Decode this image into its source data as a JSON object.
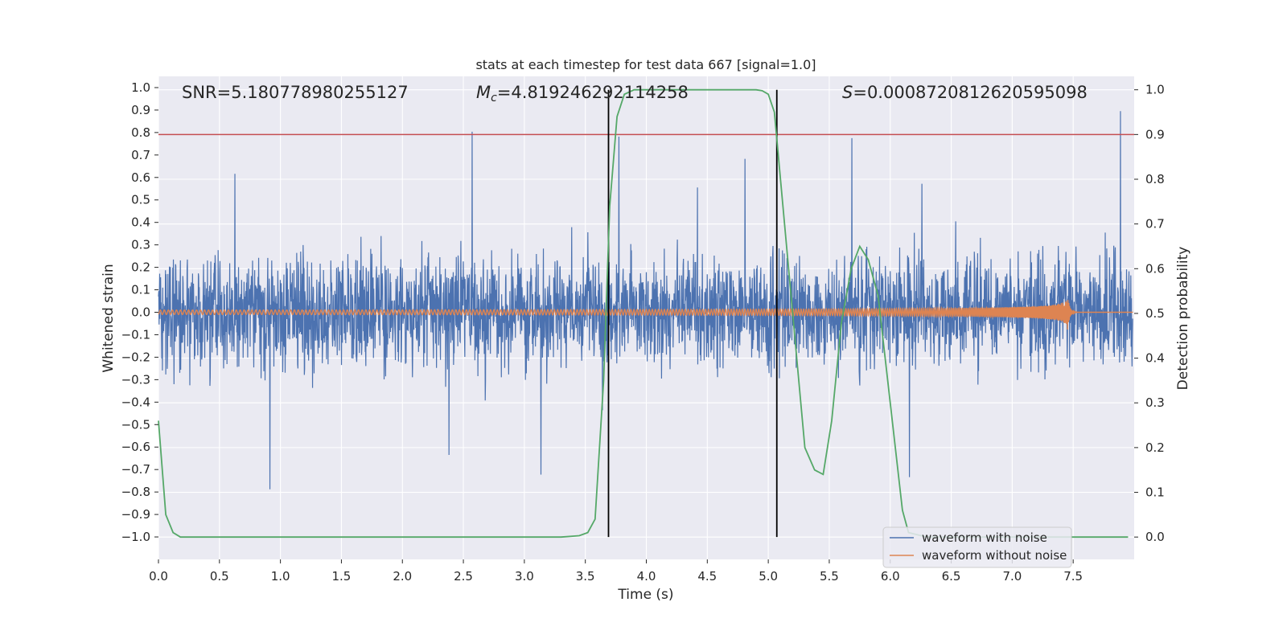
{
  "chart_data": {
    "type": "line",
    "title": "stats at each timestep for test data 667 [signal=1.0]",
    "xlabel": "Time (s)",
    "ylabel_left": "Whitened strain",
    "ylabel_right": "Detection probability",
    "xlim": [
      0.0,
      8.0
    ],
    "ylim_left": [
      -1.1,
      1.05
    ],
    "ylim_right": [
      -0.05,
      1.03
    ],
    "x_ticks": [
      "0.0",
      "0.5",
      "1.0",
      "1.5",
      "2.0",
      "2.5",
      "3.0",
      "3.5",
      "4.0",
      "4.5",
      "5.0",
      "5.5",
      "6.0",
      "6.5",
      "7.0",
      "7.5"
    ],
    "y_left_ticks": [
      "1.0",
      "0.9",
      "0.8",
      "0.7",
      "0.6",
      "0.5",
      "0.4",
      "0.3",
      "0.2",
      "0.1",
      "0.0",
      "−0.1",
      "−0.2",
      "−0.3",
      "−0.4",
      "−0.5",
      "−0.6",
      "−0.7",
      "−0.8",
      "−0.9",
      "−1.0"
    ],
    "y_right_ticks": [
      "1.0",
      "0.9",
      "0.8",
      "0.7",
      "0.6",
      "0.5",
      "0.4",
      "0.3",
      "0.2",
      "0.1",
      "0.0"
    ],
    "annotations": {
      "snr": "SNR=5.180778980255127",
      "mc_symbol": "M",
      "mc_subscript": "c",
      "mc_value": "=4.819246292114258",
      "s_symbol": "S",
      "s_value": "=0.0008720812620595098"
    },
    "threshold_probability": 0.9,
    "vertical_lines_time": [
      3.69,
      5.07
    ],
    "legend": {
      "position": "lower-right",
      "entries": [
        "waveform with noise",
        "waveform without noise"
      ]
    },
    "series": [
      {
        "name": "waveform with noise",
        "color": "#4c72b0",
        "axis": "left",
        "description": "dense noisy whitened strain, mostly within ±0.5 with spikes to ±1.0"
      },
      {
        "name": "waveform without noise",
        "color": "#dd8452",
        "axis": "left",
        "description": "chirp signal, amplitude ~0.01 growing to ~0.12 at t=7.45 s then ringdown"
      },
      {
        "name": "detection probability",
        "color": "#55a868",
        "axis": "right",
        "x": [
          0.0,
          0.06,
          0.12,
          0.18,
          0.3,
          0.5,
          0.7,
          1.0,
          1.5,
          2.0,
          2.5,
          3.0,
          3.3,
          3.45,
          3.52,
          3.58,
          3.65,
          3.7,
          3.76,
          3.82,
          3.9,
          4.0,
          4.5,
          4.9,
          4.95,
          5.0,
          5.05,
          5.1,
          5.2,
          5.3,
          5.38,
          5.45,
          5.52,
          5.6,
          5.68,
          5.75,
          5.82,
          5.9,
          6.0,
          6.1,
          6.15,
          6.3,
          6.6,
          7.0,
          7.5,
          7.95
        ],
        "y": [
          0.26,
          0.05,
          0.01,
          0.0,
          0.0,
          0.0,
          0.0,
          0.0,
          0.0,
          0.0,
          0.0,
          0.0,
          0.0,
          0.003,
          0.01,
          0.04,
          0.35,
          0.74,
          0.94,
          0.99,
          1.0,
          1.0,
          1.0,
          1.0,
          0.998,
          0.99,
          0.95,
          0.8,
          0.5,
          0.2,
          0.15,
          0.14,
          0.26,
          0.48,
          0.6,
          0.65,
          0.62,
          0.54,
          0.3,
          0.06,
          0.01,
          0.0,
          0.0,
          0.0,
          0.0,
          0.0
        ]
      }
    ],
    "colors": {
      "plot_bg": "#eaeaf2",
      "grid": "#ffffff",
      "threshold": "#c44e52",
      "vline": "#000000"
    }
  }
}
